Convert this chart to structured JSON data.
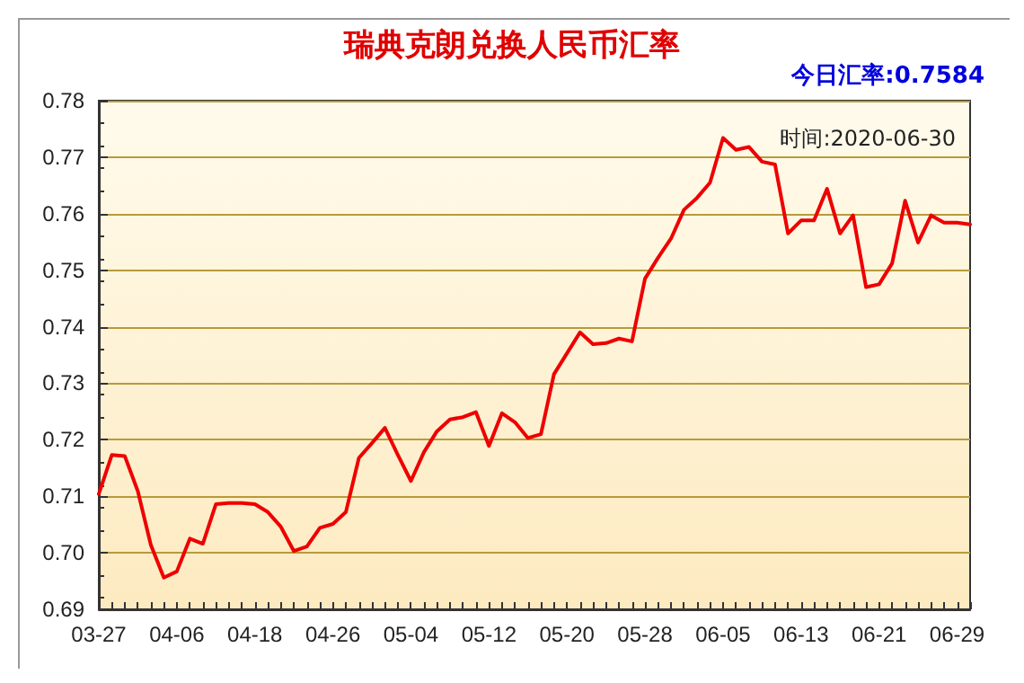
{
  "chart_data": {
    "type": "line",
    "title": "瑞典克朗兑换人民币汇率",
    "annotations": [
      "今日汇率:0.7584",
      "时间:2020-06-30"
    ],
    "categories": [
      "03-27",
      null,
      null,
      null,
      null,
      null,
      "04-06",
      null,
      null,
      null,
      null,
      null,
      "04-18",
      null,
      null,
      null,
      null,
      null,
      "04-26",
      null,
      null,
      null,
      null,
      null,
      "05-04",
      null,
      null,
      null,
      null,
      null,
      "05-12",
      null,
      null,
      null,
      null,
      null,
      "05-20",
      null,
      null,
      null,
      null,
      null,
      "05-28",
      null,
      null,
      null,
      null,
      null,
      "06-05",
      null,
      null,
      null,
      null,
      null,
      "06-13",
      null,
      null,
      null,
      null,
      null,
      "06-21",
      null,
      null,
      null,
      null,
      null,
      "06-29",
      null
    ],
    "series": [
      {
        "color": "#ee0000",
        "values": [
          0.7104,
          0.7173,
          0.7171,
          0.7109,
          0.7014,
          0.6956,
          0.6967,
          0.7025,
          0.7016,
          0.7086,
          0.7088,
          0.7088,
          0.7086,
          0.7072,
          0.7046,
          0.7003,
          0.7011,
          0.7044,
          0.7051,
          0.7072,
          0.7168,
          0.7194,
          0.7221,
          0.7173,
          0.7127,
          0.7178,
          0.7215,
          0.7236,
          0.724,
          0.7249,
          0.7189,
          0.7247,
          0.7231,
          0.7203,
          0.721,
          0.7316,
          0.7353,
          0.739,
          0.7369,
          0.7371,
          0.7379,
          0.7374,
          0.7485,
          0.7522,
          0.7556,
          0.7607,
          0.7628,
          0.7655,
          0.7734,
          0.7713,
          0.7718,
          0.7692,
          0.7687,
          0.7565,
          0.7588,
          0.7588,
          0.7644,
          0.7565,
          0.7597,
          0.747,
          0.7475,
          0.7512,
          0.7623,
          0.7549,
          0.7597,
          0.7584,
          0.7584,
          0.7581
        ]
      }
    ],
    "ylim": [
      0.69,
      0.78
    ],
    "yticks": [
      0.69,
      {
        "value": 0.7,
        "label": "0.70"
      },
      0.71,
      0.72,
      0.73,
      0.74,
      0.75,
      0.76,
      0.77,
      0.78
    ],
    "grid": "y",
    "marker": "none",
    "line_style": "solid"
  }
}
